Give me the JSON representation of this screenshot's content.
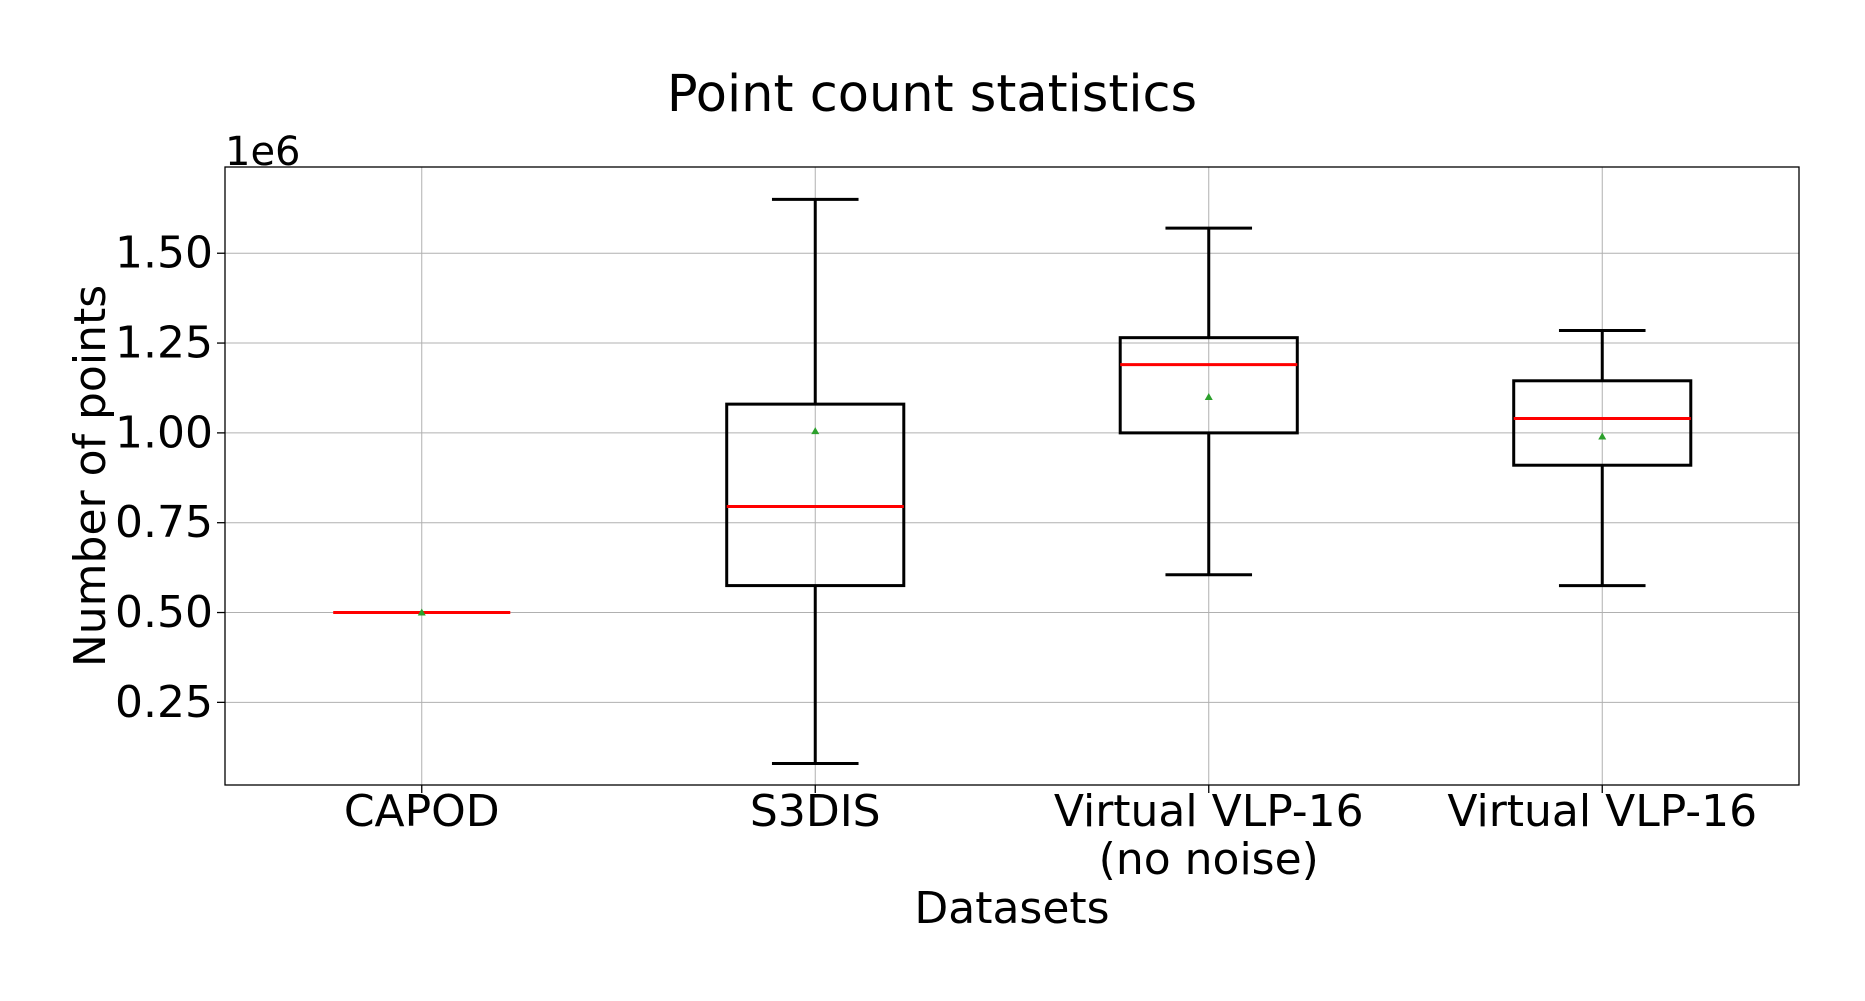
{
  "chart_data": {
    "type": "box",
    "title": "Point count statistics",
    "xlabel": "Datasets",
    "ylabel": "Number of points",
    "y_offset_label": "1e6",
    "y_scale_factor": 1000000,
    "ylim": [
      0.02,
      1.74
    ],
    "y_ticks": [
      0.25,
      0.5,
      0.75,
      1.0,
      1.25,
      1.5
    ],
    "y_tick_labels": [
      "0.25",
      "0.50",
      "0.75",
      "1.00",
      "1.25",
      "1.50"
    ],
    "grid": true,
    "categories": [
      {
        "label_lines": [
          "CAPOD"
        ]
      },
      {
        "label_lines": [
          "S3DIS"
        ]
      },
      {
        "label_lines": [
          "Virtual VLP-16",
          "(no noise)"
        ]
      },
      {
        "label_lines": [
          "Virtual VLP-16"
        ]
      }
    ],
    "boxes": [
      {
        "whisker_low": 0.5,
        "q1": 0.5,
        "median": 0.5,
        "q3": 0.5,
        "whisker_high": 0.5,
        "mean": 0.5
      },
      {
        "whisker_low": 0.08,
        "q1": 0.575,
        "median": 0.795,
        "q3": 1.08,
        "whisker_high": 1.65,
        "mean": 1.005
      },
      {
        "whisker_low": 0.605,
        "q1": 1.0,
        "median": 1.19,
        "q3": 1.265,
        "whisker_high": 1.57,
        "mean": 1.1
      },
      {
        "whisker_low": 0.575,
        "q1": 0.91,
        "median": 1.04,
        "q3": 1.145,
        "whisker_high": 1.285,
        "mean": 0.99
      }
    ],
    "colors": {
      "box": "#000000",
      "median": "#ff0000",
      "mean": "#2ca02c",
      "grid": "#b0b0b0",
      "axes": "#000000"
    }
  }
}
